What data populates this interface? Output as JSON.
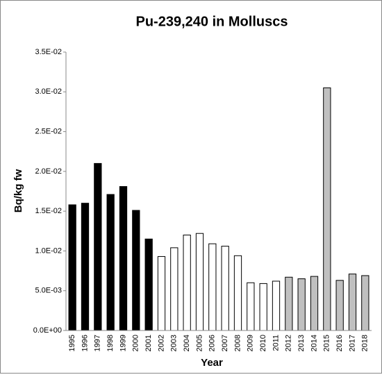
{
  "chart_data": {
    "type": "bar",
    "title": "Pu-239,240 in Molluscs",
    "x_label": "Year",
    "y_label": "Bq/kg fw",
    "categories": [
      "1995",
      "1996",
      "1997",
      "1998",
      "1999",
      "2000",
      "2001",
      "2002",
      "2003",
      "2004",
      "2005",
      "2006",
      "2007",
      "2008",
      "2009",
      "2010",
      "2011",
      "2012",
      "2013",
      "2014",
      "2015",
      "2016",
      "2017",
      "2018"
    ],
    "values": [
      0.0158,
      0.016,
      0.021,
      0.0171,
      0.0181,
      0.0151,
      0.0115,
      0.0093,
      0.0104,
      0.012,
      0.0122,
      0.0109,
      0.0106,
      0.0094,
      0.006,
      0.0059,
      0.0062,
      0.0067,
      0.0065,
      0.0068,
      0.0305,
      0.0063,
      0.0071,
      0.0069
    ],
    "colors": [
      "#000000",
      "#000000",
      "#000000",
      "#000000",
      "#000000",
      "#000000",
      "#000000",
      "#ffffff",
      "#ffffff",
      "#ffffff",
      "#ffffff",
      "#ffffff",
      "#ffffff",
      "#ffffff",
      "#ffffff",
      "#ffffff",
      "#ffffff",
      "#c0c0c0",
      "#c0c0c0",
      "#c0c0c0",
      "#c0c0c0",
      "#c0c0c0",
      "#c0c0c0",
      "#c0c0c0"
    ],
    "ylim": [
      0,
      0.035
    ],
    "yticks": [
      {
        "value": 0,
        "label": "0.0E+00"
      },
      {
        "value": 0.005,
        "label": "5.0E-03"
      },
      {
        "value": 0.01,
        "label": "1.0E-02"
      },
      {
        "value": 0.015,
        "label": "1.5E-02"
      },
      {
        "value": 0.02,
        "label": "2.0E-02"
      },
      {
        "value": 0.025,
        "label": "2.5E-02"
      },
      {
        "value": 0.03,
        "label": "3.0E-02"
      },
      {
        "value": 0.035,
        "label": "3.5E-02"
      }
    ],
    "grid": false
  }
}
